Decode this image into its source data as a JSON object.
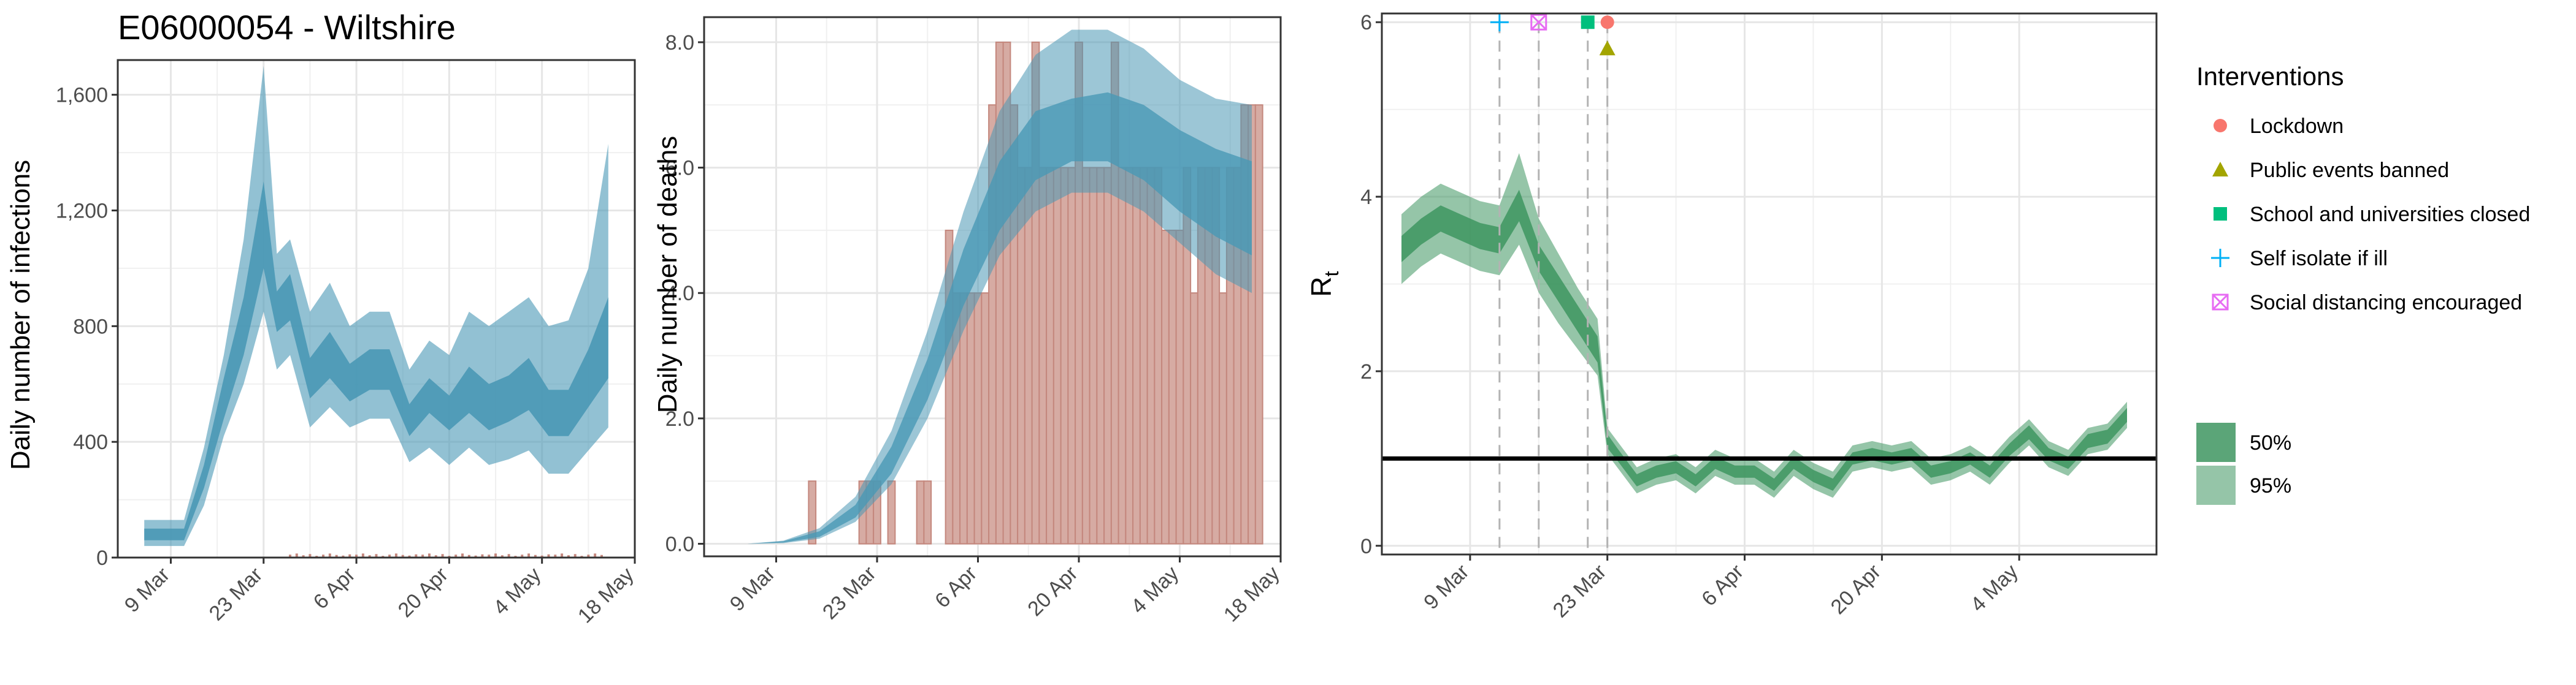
{
  "title": "E06000054 - Wiltshire",
  "colors": {
    "infection_band": "#4a98b5",
    "death_bar_fill": "#d6aba3",
    "death_bar_stroke": "#c4877d",
    "rt_band": "#3e9560",
    "lockdown": "#f8766d",
    "public_events": "#a3a500",
    "schools": "#00bf7d",
    "self_isolate": "#00b0f6",
    "social_distancing": "#e76bf3"
  },
  "chart_data": [
    {
      "type": "area",
      "id": "infections",
      "title": "E06000054 - Wiltshire",
      "xlabel": "",
      "ylabel": "Daily number of infections",
      "xlim": [
        "2020-03-01",
        "2020-05-18"
      ],
      "ylim": [
        0,
        1720
      ],
      "yticks": [
        0,
        400,
        800,
        1200,
        1600
      ],
      "ytick_labels": [
        "0",
        "400",
        "800",
        "1,200",
        "1,600"
      ],
      "xticks": [
        "2020-03-09",
        "2020-03-23",
        "2020-04-06",
        "2020-04-20",
        "2020-05-04",
        "2020-05-18"
      ],
      "xtick_labels": [
        "9 Mar",
        "23 Mar",
        "6 Apr",
        "20 Apr",
        "4 May",
        "18 May"
      ],
      "grid": true,
      "series": [
        {
          "x": [
            "2020-03-05",
            "2020-03-11",
            "2020-03-14",
            "2020-03-17",
            "2020-03-20",
            "2020-03-23",
            "2020-03-25",
            "2020-03-27",
            "2020-03-30",
            "2020-04-02",
            "2020-04-05",
            "2020-04-08",
            "2020-04-11",
            "2020-04-14",
            "2020-04-17",
            "2020-04-20",
            "2020-04-23",
            "2020-04-26",
            "2020-04-29",
            "2020-05-02",
            "2020-05-05",
            "2020-05-08",
            "2020-05-11",
            "2020-05-14"
          ],
          "median": [
            80,
            80,
            280,
            550,
            800,
            1150,
            850,
            900,
            620,
            700,
            600,
            650,
            650,
            470,
            560,
            500,
            580,
            520,
            550,
            600,
            500,
            500,
            620,
            750
          ],
          "low50": [
            60,
            60,
            240,
            480,
            700,
            1000,
            780,
            820,
            550,
            620,
            540,
            580,
            580,
            420,
            500,
            440,
            500,
            440,
            470,
            510,
            420,
            420,
            520,
            620
          ],
          "high50": [
            100,
            100,
            320,
            620,
            900,
            1300,
            920,
            980,
            690,
            780,
            670,
            720,
            720,
            530,
            620,
            560,
            660,
            600,
            630,
            690,
            580,
            580,
            720,
            900
          ],
          "low95": [
            40,
            40,
            180,
            420,
            600,
            850,
            650,
            700,
            450,
            520,
            450,
            480,
            480,
            330,
            380,
            320,
            380,
            320,
            340,
            370,
            290,
            290,
            370,
            450
          ],
          "high95": [
            130,
            130,
            380,
            700,
            1100,
            1700,
            1050,
            1100,
            850,
            950,
            800,
            850,
            850,
            650,
            750,
            700,
            850,
            800,
            850,
            900,
            800,
            820,
            1000,
            1430
          ]
        }
      ]
    },
    {
      "type": "bar",
      "id": "deaths",
      "title": "",
      "xlabel": "",
      "ylabel": "Daily number of deaths",
      "xlim": [
        "2020-02-28",
        "2020-05-18"
      ],
      "ylim": [
        -0.2,
        8.4
      ],
      "yticks": [
        0,
        2,
        4,
        6,
        8
      ],
      "ytick_labels": [
        "0.0",
        "2.0",
        "4.0",
        "6.0",
        "8.0"
      ],
      "xticks": [
        "2020-03-09",
        "2020-03-23",
        "2020-04-06",
        "2020-04-20",
        "2020-05-04",
        "2020-05-18"
      ],
      "xtick_labels": [
        "9 Mar",
        "23 Mar",
        "6 Apr",
        "20 Apr",
        "4 May",
        "18 May"
      ],
      "grid": true,
      "bars": {
        "x": [
          "2020-03-14",
          "2020-03-21",
          "2020-03-22",
          "2020-03-23",
          "2020-03-25",
          "2020-03-29",
          "2020-03-30",
          "2020-04-02",
          "2020-04-03",
          "2020-04-04",
          "2020-04-05",
          "2020-04-06",
          "2020-04-07",
          "2020-04-08",
          "2020-04-09",
          "2020-04-10",
          "2020-04-11",
          "2020-04-12",
          "2020-04-13",
          "2020-04-14",
          "2020-04-15",
          "2020-04-16",
          "2020-04-17",
          "2020-04-18",
          "2020-04-19",
          "2020-04-20",
          "2020-04-21",
          "2020-04-22",
          "2020-04-23",
          "2020-04-24",
          "2020-04-25",
          "2020-04-26",
          "2020-04-27",
          "2020-04-28",
          "2020-04-29",
          "2020-04-30",
          "2020-05-01",
          "2020-05-02",
          "2020-05-03",
          "2020-05-04",
          "2020-05-05",
          "2020-05-06",
          "2020-05-07",
          "2020-05-08",
          "2020-05-09",
          "2020-05-10",
          "2020-05-11",
          "2020-05-12",
          "2020-05-13",
          "2020-05-14",
          "2020-05-15"
        ],
        "values": [
          1,
          1,
          1,
          1,
          1,
          1,
          1,
          5,
          4,
          4,
          4,
          4,
          4,
          7,
          8,
          8,
          7,
          6,
          6,
          8,
          6,
          6,
          6,
          6,
          6,
          8,
          6,
          6,
          6,
          6,
          8,
          6,
          6,
          6,
          6,
          6,
          6,
          5,
          5,
          5,
          6,
          4,
          6,
          6,
          6,
          4,
          6,
          6,
          7,
          7,
          7
        ]
      },
      "series": [
        {
          "x": [
            "2020-03-05",
            "2020-03-10",
            "2020-03-15",
            "2020-03-20",
            "2020-03-25",
            "2020-03-30",
            "2020-04-04",
            "2020-04-09",
            "2020-04-14",
            "2020-04-19",
            "2020-04-24",
            "2020-04-29",
            "2020-05-04",
            "2020-05-09",
            "2020-05-14"
          ],
          "median": [
            0,
            0.03,
            0.15,
            0.5,
            1.3,
            2.6,
            4.2,
            5.5,
            6.3,
            6.6,
            6.6,
            6.4,
            6.0,
            5.6,
            5.3
          ],
          "low50": [
            0,
            0.02,
            0.11,
            0.42,
            1.12,
            2.3,
            3.8,
            5.0,
            5.8,
            6.1,
            6.1,
            5.8,
            5.3,
            4.9,
            4.6
          ],
          "high50": [
            0,
            0.04,
            0.2,
            0.62,
            1.55,
            2.95,
            4.7,
            6.1,
            6.9,
            7.1,
            7.2,
            7.0,
            6.6,
            6.3,
            6.1
          ],
          "low95": [
            0,
            0.01,
            0.08,
            0.35,
            0.95,
            2.0,
            3.4,
            4.6,
            5.3,
            5.6,
            5.6,
            5.3,
            4.8,
            4.3,
            4.0
          ],
          "high95": [
            0,
            0.05,
            0.25,
            0.75,
            1.8,
            3.4,
            5.3,
            6.9,
            7.8,
            8.2,
            8.2,
            7.9,
            7.4,
            7.1,
            7.0
          ]
        }
      ]
    },
    {
      "type": "line",
      "id": "rt",
      "title": "",
      "xlabel": "",
      "ylabel": "Rt",
      "xlim": [
        "2020-02-29",
        "2020-05-18"
      ],
      "ylim": [
        -0.1,
        6.1
      ],
      "yticks": [
        0,
        2,
        4,
        6
      ],
      "ytick_labels": [
        "0",
        "2",
        "4",
        "6"
      ],
      "xticks": [
        "2020-03-09",
        "2020-03-23",
        "2020-04-06",
        "2020-04-20",
        "2020-05-04"
      ],
      "xtick_labels": [
        "9 Mar",
        "23 Mar",
        "6 Apr",
        "20 Apr",
        "4 May"
      ],
      "grid": true,
      "reference_line": 1,
      "series": [
        {
          "x": [
            "2020-03-02",
            "2020-03-04",
            "2020-03-06",
            "2020-03-08",
            "2020-03-10",
            "2020-03-12",
            "2020-03-14",
            "2020-03-16",
            "2020-03-18",
            "2020-03-20",
            "2020-03-22",
            "2020-03-23",
            "2020-03-24",
            "2020-03-26",
            "2020-03-28",
            "2020-03-30",
            "2020-04-01",
            "2020-04-03",
            "2020-04-05",
            "2020-04-07",
            "2020-04-09",
            "2020-04-11",
            "2020-04-13",
            "2020-04-15",
            "2020-04-17",
            "2020-04-19",
            "2020-04-21",
            "2020-04-23",
            "2020-04-25",
            "2020-04-27",
            "2020-04-29",
            "2020-05-01",
            "2020-05-03",
            "2020-05-05",
            "2020-05-07",
            "2020-05-09",
            "2020-05-11",
            "2020-05-13",
            "2020-05-15"
          ],
          "median": [
            3.4,
            3.6,
            3.75,
            3.65,
            3.55,
            3.5,
            3.9,
            3.3,
            2.95,
            2.6,
            2.25,
            1.2,
            1.05,
            0.75,
            0.85,
            0.9,
            0.75,
            0.95,
            0.85,
            0.85,
            0.7,
            0.95,
            0.8,
            0.7,
            1.0,
            1.05,
            1.0,
            1.05,
            0.85,
            0.9,
            1.0,
            0.85,
            1.1,
            1.3,
            1.05,
            0.95,
            1.2,
            1.25,
            1.5
          ],
          "low50": [
            3.25,
            3.45,
            3.6,
            3.5,
            3.4,
            3.35,
            3.72,
            3.15,
            2.8,
            2.45,
            2.1,
            1.12,
            0.98,
            0.68,
            0.78,
            0.83,
            0.68,
            0.88,
            0.78,
            0.78,
            0.63,
            0.88,
            0.73,
            0.63,
            0.93,
            0.98,
            0.93,
            0.98,
            0.78,
            0.83,
            0.93,
            0.78,
            1.03,
            1.22,
            0.98,
            0.88,
            1.12,
            1.17,
            1.42
          ],
          "high50": [
            3.55,
            3.75,
            3.9,
            3.8,
            3.7,
            3.65,
            4.08,
            3.45,
            3.1,
            2.75,
            2.4,
            1.28,
            1.12,
            0.82,
            0.92,
            0.97,
            0.82,
            1.02,
            0.92,
            0.92,
            0.77,
            1.02,
            0.87,
            0.77,
            1.07,
            1.12,
            1.07,
            1.12,
            0.92,
            0.97,
            1.07,
            0.92,
            1.17,
            1.38,
            1.12,
            1.02,
            1.28,
            1.33,
            1.58
          ],
          "low95": [
            3.0,
            3.2,
            3.35,
            3.25,
            3.15,
            3.1,
            3.45,
            2.9,
            2.55,
            2.25,
            1.95,
            1.05,
            0.9,
            0.6,
            0.7,
            0.75,
            0.6,
            0.8,
            0.7,
            0.7,
            0.55,
            0.8,
            0.65,
            0.55,
            0.85,
            0.9,
            0.85,
            0.9,
            0.7,
            0.75,
            0.85,
            0.7,
            0.95,
            1.15,
            0.9,
            0.8,
            1.05,
            1.1,
            1.35
          ],
          "high95": [
            3.8,
            4.0,
            4.15,
            4.05,
            3.95,
            3.9,
            4.5,
            3.75,
            3.35,
            2.95,
            2.6,
            1.35,
            1.2,
            0.9,
            1.0,
            1.05,
            0.9,
            1.1,
            1.0,
            1.0,
            0.85,
            1.1,
            0.95,
            0.85,
            1.15,
            1.2,
            1.15,
            1.2,
            1.0,
            1.05,
            1.15,
            1.0,
            1.25,
            1.45,
            1.2,
            1.1,
            1.35,
            1.4,
            1.65
          ]
        }
      ],
      "interventions": [
        {
          "name": "Lockdown",
          "date": "2020-03-23",
          "marker": "circle"
        },
        {
          "name": "Public events banned",
          "date": "2020-03-23",
          "marker": "triangle"
        },
        {
          "name": "School and universities closed",
          "date": "2020-03-21",
          "marker": "square"
        },
        {
          "name": "Self isolate if ill",
          "date": "2020-03-12",
          "marker": "plus"
        },
        {
          "name": "Social distancing encouraged",
          "date": "2020-03-16",
          "marker": "boxed-x"
        }
      ]
    }
  ],
  "legend": {
    "interventions_title": "Interventions",
    "interventions": [
      {
        "label": "Lockdown",
        "marker": "circle",
        "color": "#f8766d"
      },
      {
        "label": "Public events banned",
        "marker": "triangle",
        "color": "#a3a500"
      },
      {
        "label": "School and universities closed",
        "marker": "square",
        "color": "#00bf7d"
      },
      {
        "label": "Self isolate if ill",
        "marker": "plus",
        "color": "#00b0f6"
      },
      {
        "label": "Social distancing encouraged",
        "marker": "boxed-x",
        "color": "#e76bf3"
      }
    ],
    "bands": [
      {
        "label": "50%"
      },
      {
        "label": "95%"
      }
    ]
  }
}
